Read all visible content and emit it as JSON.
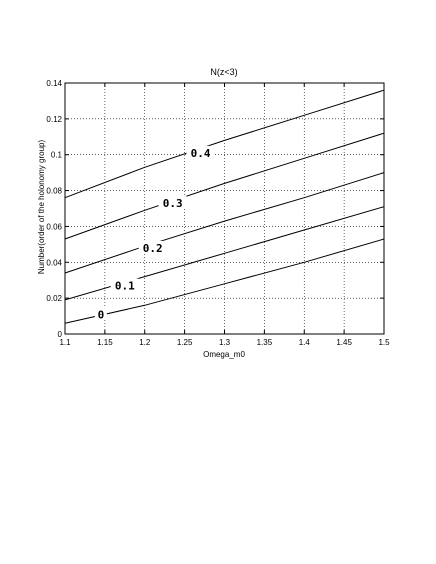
{
  "chart_data": {
    "type": "line",
    "title": "N(z<3)",
    "xlabel": "Omega_m0",
    "ylabel": "Number(order of the holonomy group)",
    "xlim": [
      1.1,
      1.5
    ],
    "ylim": [
      0,
      0.14
    ],
    "xticks": [
      "1.1",
      "1.15",
      "1.2",
      "1.25",
      "1.3",
      "1.35",
      "1.4",
      "1.45",
      "1.5"
    ],
    "yticks": [
      "0",
      "0.02",
      "0.04",
      "0.06",
      "0.08",
      "0.1",
      "0.12",
      "0.14"
    ],
    "grid": true,
    "x": [
      1.1,
      1.2,
      1.3,
      1.4,
      1.5
    ],
    "series": [
      {
        "name": "0",
        "label": "0",
        "label_at": [
          1.145,
          0.011
        ],
        "values": [
          0.006,
          0.016,
          0.028,
          0.04,
          0.053
        ]
      },
      {
        "name": "0.1",
        "label": "0.1",
        "label_at": [
          1.175,
          0.027
        ],
        "values": [
          0.019,
          0.032,
          0.045,
          0.058,
          0.071
        ]
      },
      {
        "name": "0.2",
        "label": "0.2",
        "label_at": [
          1.21,
          0.048
        ],
        "values": [
          0.034,
          0.049,
          0.063,
          0.076,
          0.09
        ]
      },
      {
        "name": "0.3",
        "label": "0.3",
        "label_at": [
          1.235,
          0.073
        ],
        "values": [
          0.053,
          0.069,
          0.084,
          0.098,
          0.112
        ]
      },
      {
        "name": "0.4",
        "label": "0.4",
        "label_at": [
          1.27,
          0.101
        ],
        "values": [
          0.076,
          0.093,
          0.108,
          0.122,
          0.136
        ]
      }
    ]
  }
}
